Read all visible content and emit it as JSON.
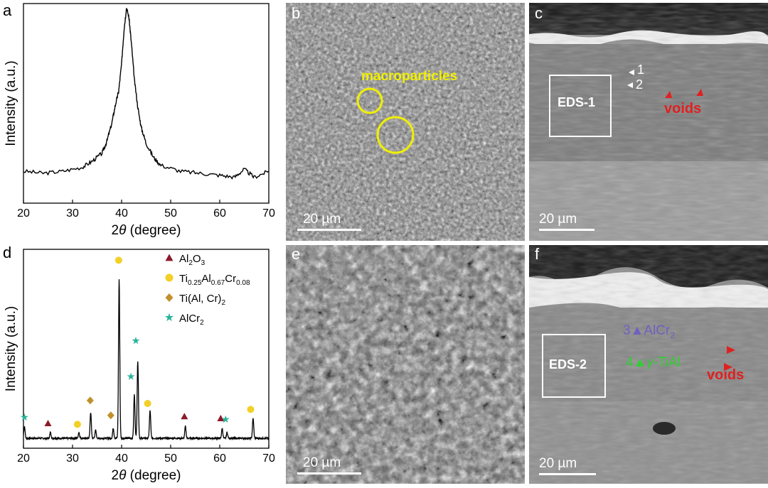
{
  "panels": {
    "a": {
      "letter": "a"
    },
    "b": {
      "letter": "b",
      "scalebar": "20 µm",
      "annotation": "macroparticles"
    },
    "c": {
      "letter": "c",
      "scalebar": "20 µm",
      "box_label": "EDS-1",
      "marker1": "1",
      "marker2": "2",
      "voids": "voids"
    },
    "d": {
      "letter": "d"
    },
    "e": {
      "letter": "e",
      "scalebar": "20 µm"
    },
    "f": {
      "letter": "f",
      "scalebar": "20 µm",
      "box_label": "EDS-2",
      "marker3": "3",
      "phase3": "AlCr",
      "phase3_sub": "2",
      "marker4": "4",
      "phase4_greek": "γ",
      "phase4": "-TiAl",
      "voids": "voids"
    }
  },
  "colors": {
    "al2o3": "#8b1a2b",
    "tialcr": "#f2d027",
    "ti_alcr2": "#c0902a",
    "alcr2": "#2ab39a",
    "voids": "#e02020",
    "alcr2_label": "#7060c0",
    "tial_label": "#30d030",
    "macro": "#f0f000"
  },
  "chart_data": [
    {
      "type": "line",
      "panel": "a",
      "title": "",
      "xlabel_prefix": "2",
      "xlabel_var": "θ",
      "xlabel_suffix": " (degree)",
      "ylabel": "Intensity (a.u.)",
      "xlim": [
        20,
        70
      ],
      "ylim": [
        0,
        1
      ],
      "xticks": [
        20,
        30,
        40,
        50,
        60,
        70
      ],
      "series": [
        {
          "x": [
            20,
            24,
            28,
            32,
            34,
            36,
            37,
            38,
            38.8,
            39.4,
            40,
            40.5,
            41,
            41.5,
            42,
            42.6,
            43.3,
            44,
            45,
            46.5,
            48,
            52,
            56,
            60,
            63,
            65,
            67,
            70
          ],
          "y": [
            0.16,
            0.15,
            0.16,
            0.18,
            0.21,
            0.25,
            0.31,
            0.4,
            0.5,
            0.56,
            0.7,
            0.87,
            0.98,
            0.93,
            0.8,
            0.62,
            0.48,
            0.38,
            0.3,
            0.23,
            0.19,
            0.16,
            0.15,
            0.14,
            0.13,
            0.17,
            0.13,
            0.16
          ]
        }
      ]
    },
    {
      "type": "line",
      "panel": "d",
      "title": "",
      "xlabel_prefix": "2",
      "xlabel_var": "θ",
      "xlabel_suffix": " (degree)",
      "ylabel": "Intensity (a.u.)",
      "xlim": [
        20,
        70
      ],
      "ylim": [
        0,
        1
      ],
      "xticks": [
        20,
        30,
        40,
        50,
        60,
        70
      ],
      "baseline": 0.05,
      "peaks": [
        {
          "x": 20.2,
          "h": 0.06
        },
        {
          "x": 25.5,
          "h": 0.03
        },
        {
          "x": 31.3,
          "h": 0.03
        },
        {
          "x": 33.7,
          "h": 0.13
        },
        {
          "x": 34.7,
          "h": 0.04
        },
        {
          "x": 38.3,
          "h": 0.05
        },
        {
          "x": 39.5,
          "h": 0.8
        },
        {
          "x": 42.6,
          "h": 0.22
        },
        {
          "x": 43.3,
          "h": 0.39
        },
        {
          "x": 45.8,
          "h": 0.14
        },
        {
          "x": 53.0,
          "h": 0.06
        },
        {
          "x": 60.5,
          "h": 0.05
        },
        {
          "x": 61.5,
          "h": 0.03
        },
        {
          "x": 66.8,
          "h": 0.1
        }
      ],
      "legend": [
        {
          "label": "Al",
          "sub1": "2",
          "mid": "O",
          "sub2": "3",
          "tail": "",
          "marker": "triangle",
          "color": "#8b1a2b"
        },
        {
          "label": "Ti",
          "sub1": "0.25",
          "mid": "Al",
          "sub2": "0.67",
          "tail": "Cr",
          "sub3": "0.08",
          "marker": "circle",
          "color": "#f2d027"
        },
        {
          "label": "Ti(Al, Cr)",
          "sub1": "2",
          "mid": "",
          "sub2": "",
          "tail": "",
          "marker": "diamond",
          "color": "#c0902a"
        },
        {
          "label": "AlCr",
          "sub1": "2",
          "mid": "",
          "sub2": "",
          "tail": "",
          "marker": "star",
          "color": "#2ab39a"
        }
      ],
      "markers": [
        {
          "x": 20.2,
          "y": 0.155,
          "m": "star"
        },
        {
          "x": 25.0,
          "y": 0.125,
          "m": "triangle"
        },
        {
          "x": 31.0,
          "y": 0.12,
          "m": "circle"
        },
        {
          "x": 33.6,
          "y": 0.24,
          "m": "diamond"
        },
        {
          "x": 37.8,
          "y": 0.165,
          "m": "diamond"
        },
        {
          "x": 39.4,
          "y": 0.945,
          "m": "circle"
        },
        {
          "x": 41.9,
          "y": 0.36,
          "m": "star"
        },
        {
          "x": 42.9,
          "y": 0.54,
          "m": "star"
        },
        {
          "x": 45.3,
          "y": 0.225,
          "m": "circle"
        },
        {
          "x": 52.8,
          "y": 0.16,
          "m": "triangle"
        },
        {
          "x": 60.2,
          "y": 0.15,
          "m": "triangle"
        },
        {
          "x": 61.2,
          "y": 0.145,
          "m": "star"
        },
        {
          "x": 66.3,
          "y": 0.195,
          "m": "circle"
        }
      ]
    }
  ]
}
